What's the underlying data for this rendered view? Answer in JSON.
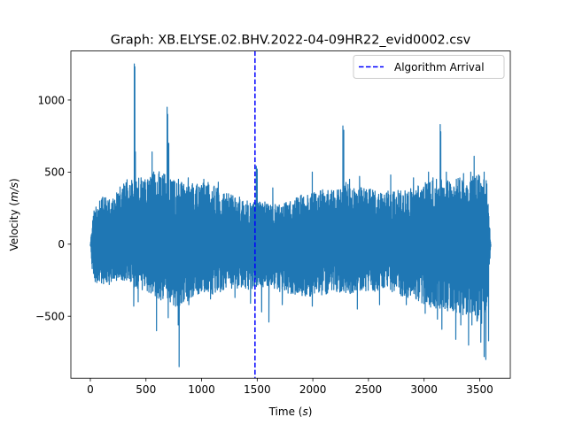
{
  "chart_data": {
    "type": "line",
    "title": "Graph: XB.ELYSE.02.BHV.2022-04-09HR22_evid0002.csv",
    "xlabel_main": "Time (",
    "xlabel_unit": "s",
    "xlabel_close": ")",
    "ylabel_main": "Velocity (",
    "ylabel_unit": "m/s",
    "ylabel_close": ")",
    "xlim": [
      -175,
      3775
    ],
    "ylim": [
      -930,
      1340
    ],
    "xticks": [
      0,
      500,
      1000,
      1500,
      2000,
      2500,
      3000,
      3500
    ],
    "xtick_labels": [
      "0",
      "500",
      "1000",
      "1500",
      "2000",
      "2500",
      "3000",
      "3500"
    ],
    "yticks": [
      -500,
      0,
      500,
      1000
    ],
    "ytick_labels": [
      "−500",
      "0",
      "500",
      "1000"
    ],
    "series": [
      {
        "color": "#1f77b4",
        "x_start": 0,
        "x_end": 3600,
        "envelope": [
          [
            0,
            0,
            0
          ],
          [
            25,
            220,
            -260
          ],
          [
            100,
            330,
            -280
          ],
          [
            200,
            310,
            -260
          ],
          [
            300,
            440,
            -250
          ],
          [
            400,
            470,
            -300
          ],
          [
            500,
            460,
            -330
          ],
          [
            600,
            520,
            -380
          ],
          [
            700,
            470,
            -400
          ],
          [
            800,
            440,
            -450
          ],
          [
            900,
            440,
            -380
          ],
          [
            1000,
            430,
            -330
          ],
          [
            1100,
            430,
            -350
          ],
          [
            1200,
            360,
            -330
          ],
          [
            1300,
            350,
            -300
          ],
          [
            1400,
            300,
            -330
          ],
          [
            1500,
            300,
            -300
          ],
          [
            1600,
            290,
            -300
          ],
          [
            1700,
            280,
            -330
          ],
          [
            1800,
            300,
            -350
          ],
          [
            1900,
            350,
            -360
          ],
          [
            2000,
            360,
            -360
          ],
          [
            2100,
            380,
            -350
          ],
          [
            2200,
            370,
            -330
          ],
          [
            2300,
            430,
            -350
          ],
          [
            2400,
            400,
            -330
          ],
          [
            2500,
            390,
            -330
          ],
          [
            2600,
            370,
            -330
          ],
          [
            2700,
            380,
            -330
          ],
          [
            2800,
            370,
            -360
          ],
          [
            2900,
            400,
            -380
          ],
          [
            3000,
            430,
            -420
          ],
          [
            3100,
            450,
            -450
          ],
          [
            3200,
            450,
            -460
          ],
          [
            3300,
            460,
            -480
          ],
          [
            3400,
            470,
            -500
          ],
          [
            3500,
            500,
            -560
          ],
          [
            3560,
            480,
            -550
          ],
          [
            3600,
            0,
            0
          ]
        ],
        "peaks": [
          [
            310,
            300
          ],
          [
            318,
            330
          ],
          [
            395,
            1250
          ],
          [
            400,
            1230
          ],
          [
            405,
            640
          ],
          [
            520,
            350
          ],
          [
            555,
            640
          ],
          [
            628,
            460
          ],
          [
            690,
            950
          ],
          [
            695,
            900
          ],
          [
            705,
            700
          ],
          [
            792,
            450
          ],
          [
            880,
            460
          ],
          [
            1020,
            450
          ],
          [
            1150,
            430
          ],
          [
            1492,
            540
          ],
          [
            1500,
            520
          ],
          [
            1640,
            390
          ],
          [
            1995,
            500
          ],
          [
            2270,
            820
          ],
          [
            2278,
            790
          ],
          [
            2330,
            450
          ],
          [
            2420,
            470
          ],
          [
            2700,
            480
          ],
          [
            2905,
            460
          ],
          [
            3040,
            500
          ],
          [
            3080,
            460
          ],
          [
            3145,
            830
          ],
          [
            3150,
            780
          ],
          [
            3200,
            500
          ],
          [
            3290,
            450
          ],
          [
            3355,
            490
          ],
          [
            3420,
            500
          ],
          [
            3450,
            610
          ],
          [
            3490,
            480
          ],
          [
            3540,
            500
          ]
        ],
        "troughs": [
          [
            170,
            -280
          ],
          [
            390,
            -430
          ],
          [
            430,
            -400
          ],
          [
            595,
            -600
          ],
          [
            700,
            -510
          ],
          [
            790,
            -560
          ],
          [
            798,
            -850
          ],
          [
            885,
            -420
          ],
          [
            1080,
            -380
          ],
          [
            1300,
            -370
          ],
          [
            1440,
            -410
          ],
          [
            1540,
            -470
          ],
          [
            1605,
            -540
          ],
          [
            1725,
            -420
          ],
          [
            1995,
            -430
          ],
          [
            2400,
            -450
          ],
          [
            2600,
            -420
          ],
          [
            2840,
            -420
          ],
          [
            3010,
            -480
          ],
          [
            3120,
            -520
          ],
          [
            3160,
            -590
          ],
          [
            3285,
            -660
          ],
          [
            3330,
            -560
          ],
          [
            3400,
            -700
          ],
          [
            3430,
            -560
          ],
          [
            3510,
            -680
          ],
          [
            3540,
            -780
          ],
          [
            3555,
            -800
          ],
          [
            3580,
            -670
          ]
        ]
      }
    ],
    "vlines": [
      {
        "name": "Algorithm Arrival",
        "x": 1480,
        "color": "#0000ff",
        "style": "dashed"
      }
    ],
    "legend_position": "upper-right",
    "legend_entries": [
      "Algorithm Arrival"
    ],
    "grid": false
  }
}
